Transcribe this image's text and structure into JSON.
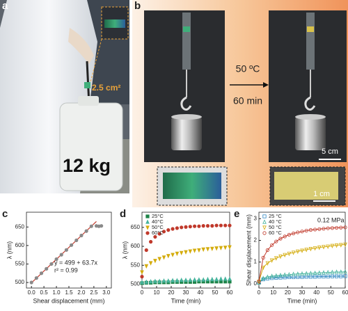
{
  "figure": {
    "panels": [
      "a",
      "b",
      "c",
      "d",
      "e"
    ],
    "photo_a": {
      "area": "2.5 cm²",
      "mass": "12 kg"
    },
    "photo_b": {
      "temperature": "50 ºC",
      "time": "60 min",
      "scale_top": "5 cm",
      "scale_bottom": "1 cm"
    }
  },
  "chart_data": [
    {
      "type": "scatter",
      "x_label": "Shear displacement (mm)",
      "y_label": "λ (nm)",
      "annotations": [
        "y = 499 + 63.7x",
        "r² = 0.99"
      ],
      "x": [
        0,
        0.2,
        0.4,
        0.6,
        0.8,
        1.0,
        1.2,
        1.4,
        1.6,
        1.8,
        2.0,
        2.2,
        2.4,
        2.6,
        2.7,
        2.8
      ],
      "series": [
        {
          "color": "#8a8a8a",
          "marker": "circle",
          "values": [
            500,
            512,
            525,
            537,
            550,
            563,
            575,
            588,
            601,
            614,
            627,
            639,
            652,
            653,
            652,
            653
          ]
        }
      ],
      "fit": {
        "color": "#c0392b",
        "x": [
          0,
          2.6
        ],
        "y": [
          499,
          665
        ]
      },
      "xlim": [
        -0.2,
        3.2
      ],
      "ylim": [
        485,
        690
      ],
      "xticks": [
        {
          "value": 0,
          "label": "0.0"
        },
        0.5,
        {
          "value": 1,
          "label": "1.0"
        },
        1.5,
        {
          "value": 2,
          "label": "2.0"
        },
        2.5,
        {
          "value": 3,
          "label": "3.0"
        }
      ],
      "yticks": [
        500,
        550,
        600,
        650
      ]
    },
    {
      "type": "scatter",
      "x_label": "Time (min)",
      "y_label": "λ (nm)",
      "legend": "upper left",
      "x": [
        0,
        3,
        6,
        9,
        12,
        15,
        18,
        21,
        24,
        27,
        30,
        33,
        36,
        39,
        42,
        45,
        48,
        51,
        54,
        57,
        60
      ],
      "series": [
        {
          "name": "25°C",
          "color": "#1e8449",
          "marker": "square",
          "values": [
            503,
            504,
            504,
            505,
            505,
            505,
            505,
            506,
            506,
            506,
            506,
            506,
            506,
            507,
            507,
            507,
            507,
            507,
            507,
            507,
            507
          ]
        },
        {
          "name": "40°C",
          "color": "#45b39d",
          "marker": "triangle",
          "values": [
            505,
            506,
            507,
            508,
            508,
            509,
            509,
            510,
            510,
            511,
            511,
            511,
            512,
            512,
            512,
            513,
            513,
            513,
            514,
            514,
            514
          ]
        },
        {
          "name": "50°C",
          "color": "#d4ac0d",
          "marker": "triangle-down",
          "values": [
            532,
            548,
            556,
            562,
            567,
            571,
            575,
            578,
            581,
            583,
            585,
            587,
            589,
            590,
            592,
            593,
            594,
            595,
            596,
            597,
            598
          ]
        },
        {
          "name": "60°C",
          "color": "#c0392b",
          "marker": "circle",
          "values": [
            520,
            590,
            612,
            625,
            633,
            639,
            643,
            646,
            648,
            650,
            651,
            652,
            653,
            653,
            654,
            654,
            654,
            655,
            655,
            655,
            655
          ]
        }
      ],
      "xlim": [
        0,
        60
      ],
      "ylim": [
        490,
        690
      ],
      "xticks": [
        0,
        10,
        20,
        30,
        40,
        50,
        60
      ],
      "yticks": [
        500,
        550,
        600,
        650
      ]
    },
    {
      "type": "line",
      "x_label": "Time (min)",
      "y_label": "Shear displacement (mm)",
      "legend": "upper left",
      "annotations": [
        "0.12 MPa"
      ],
      "x": [
        0,
        3,
        6,
        9,
        12,
        15,
        18,
        21,
        24,
        27,
        30,
        33,
        36,
        39,
        42,
        45,
        48,
        51,
        54,
        57,
        60
      ],
      "series": [
        {
          "name": "25 °C",
          "color": "#2e86c1",
          "marker": "square",
          "values": [
            0.05,
            0.2,
            0.24,
            0.26,
            0.27,
            0.28,
            0.29,
            0.3,
            0.3,
            0.31,
            0.31,
            0.32,
            0.32,
            0.32,
            0.33,
            0.33,
            0.33,
            0.34,
            0.34,
            0.34,
            0.35
          ]
        },
        {
          "name": "40 °C",
          "color": "#45b39d",
          "marker": "triangle",
          "values": [
            0.05,
            0.25,
            0.31,
            0.35,
            0.37,
            0.39,
            0.41,
            0.42,
            0.44,
            0.45,
            0.46,
            0.47,
            0.48,
            0.49,
            0.5,
            0.51,
            0.52,
            0.53,
            0.54,
            0.54,
            0.55
          ]
        },
        {
          "name": "50 °C",
          "color": "#d4ac0d",
          "marker": "triangle-down",
          "values": [
            0.1,
            0.75,
            0.95,
            1.08,
            1.18,
            1.26,
            1.33,
            1.39,
            1.44,
            1.49,
            1.53,
            1.57,
            1.61,
            1.64,
            1.67,
            1.7,
            1.72,
            1.75,
            1.77,
            1.79,
            1.81
          ]
        },
        {
          "name": "60 °C",
          "color": "#c0392b",
          "marker": "circle",
          "values": [
            0.1,
            1.2,
            1.55,
            1.78,
            1.95,
            2.08,
            2.18,
            2.26,
            2.32,
            2.37,
            2.41,
            2.45,
            2.48,
            2.5,
            2.52,
            2.54,
            2.56,
            2.57,
            2.58,
            2.59,
            2.6
          ]
        }
      ],
      "xlim": [
        0,
        60
      ],
      "ylim": [
        -0.2,
        3.3
      ],
      "xticks": [
        0,
        10,
        20,
        30,
        40,
        50,
        60
      ],
      "yticks": [
        0,
        1,
        2,
        3
      ]
    }
  ]
}
